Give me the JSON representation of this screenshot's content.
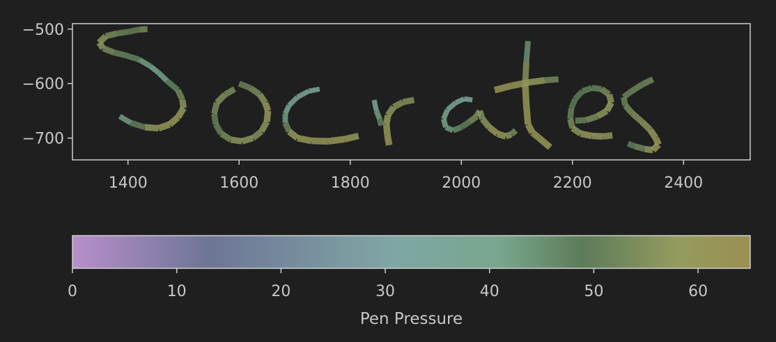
{
  "chart_data": [
    {
      "type": "line",
      "title": "",
      "xlabel": "",
      "ylabel": "",
      "xlim": [
        1300,
        2520
      ],
      "ylim": [
        -740,
        -490
      ],
      "x_ticks": [
        1400,
        1600,
        1800,
        2000,
        2200,
        2400
      ],
      "y_ticks": [
        -500,
        -600,
        -700
      ],
      "x_tick_labels": [
        "1400",
        "1600",
        "1800",
        "2000",
        "2200",
        "2400"
      ],
      "y_tick_labels": [
        "−500",
        "−600",
        "−700"
      ],
      "grid": false,
      "color_by": "Pen Pressure",
      "strokes": [
        {
          "name": "S",
          "points": [
            [
              1435,
              -500,
              55
            ],
            [
              1420,
              -501,
              50
            ],
            [
              1400,
              -505,
              50
            ],
            [
              1380,
              -508,
              52
            ],
            [
              1360,
              -513,
              55
            ],
            [
              1348,
              -525,
              58
            ],
            [
              1355,
              -535,
              55
            ],
            [
              1375,
              -543,
              52
            ],
            [
              1395,
              -548,
              50
            ],
            [
              1420,
              -556,
              45
            ],
            [
              1440,
              -568,
              40
            ],
            [
              1455,
              -580,
              38
            ],
            [
              1470,
              -595,
              45
            ],
            [
              1490,
              -612,
              50
            ],
            [
              1498,
              -630,
              55
            ],
            [
              1500,
              -645,
              58
            ],
            [
              1490,
              -662,
              60
            ],
            [
              1475,
              -675,
              62
            ],
            [
              1455,
              -682,
              60
            ],
            [
              1430,
              -680,
              55
            ],
            [
              1405,
              -672,
              45
            ],
            [
              1385,
              -660,
              40
            ]
          ]
        },
        {
          "name": "o",
          "points": [
            [
              1600,
              -600,
              50
            ],
            [
              1620,
              -608,
              52
            ],
            [
              1637,
              -620,
              55
            ],
            [
              1647,
              -635,
              58
            ],
            [
              1652,
              -650,
              60
            ],
            [
              1650,
              -670,
              58
            ],
            [
              1640,
              -688,
              55
            ],
            [
              1625,
              -700,
              55
            ],
            [
              1605,
              -706,
              58
            ],
            [
              1585,
              -703,
              55
            ],
            [
              1568,
              -692,
              52
            ],
            [
              1558,
              -675,
              50
            ],
            [
              1555,
              -655,
              52
            ],
            [
              1560,
              -635,
              55
            ],
            [
              1575,
              -620,
              55
            ],
            [
              1592,
              -610,
              52
            ]
          ]
        },
        {
          "name": "c",
          "points": [
            [
              1745,
              -610,
              35
            ],
            [
              1725,
              -614,
              35
            ],
            [
              1705,
              -625,
              35
            ],
            [
              1690,
              -640,
              38
            ],
            [
              1683,
              -655,
              40
            ],
            [
              1683,
              -672,
              45
            ],
            [
              1690,
              -688,
              58
            ],
            [
              1705,
              -700,
              60
            ],
            [
              1730,
              -705,
              62
            ],
            [
              1760,
              -706,
              62
            ],
            [
              1790,
              -702,
              60
            ],
            [
              1815,
              -696,
              58
            ]
          ]
        },
        {
          "name": "r1",
          "points": [
            [
              1843,
              -630,
              32
            ],
            [
              1847,
              -650,
              40
            ],
            [
              1853,
              -665,
              45
            ],
            [
              1856,
              -677,
              50
            ]
          ]
        },
        {
          "name": "r2",
          "points": [
            [
              1870,
              -713,
              62
            ],
            [
              1867,
              -695,
              62
            ],
            [
              1865,
              -675,
              60
            ],
            [
              1868,
              -658,
              58
            ],
            [
              1878,
              -643,
              55
            ],
            [
              1895,
              -634,
              55
            ],
            [
              1915,
              -630,
              55
            ]
          ]
        },
        {
          "name": "a",
          "points": [
            [
              2020,
              -630,
              35
            ],
            [
              2005,
              -628,
              35
            ],
            [
              1990,
              -635,
              35
            ],
            [
              1975,
              -648,
              38
            ],
            [
              1968,
              -665,
              40
            ],
            [
              1972,
              -680,
              42
            ],
            [
              1985,
              -686,
              45
            ],
            [
              2000,
              -680,
              48
            ],
            [
              2015,
              -670,
              52
            ],
            [
              2028,
              -660,
              55
            ],
            [
              2033,
              -650,
              55
            ],
            [
              2038,
              -665,
              55
            ],
            [
              2050,
              -680,
              58
            ],
            [
              2065,
              -692,
              60
            ],
            [
              2080,
              -697,
              58
            ],
            [
              2090,
              -693,
              55
            ],
            [
              2098,
              -686,
              50
            ]
          ]
        },
        {
          "name": "t1",
          "points": [
            [
              2120,
              -522,
              40
            ],
            [
              2117,
              -560,
              50
            ],
            [
              2115,
              -600,
              60
            ],
            [
              2117,
              -640,
              62
            ],
            [
              2120,
              -675,
              60
            ],
            [
              2128,
              -690,
              62
            ],
            [
              2140,
              -700,
              62
            ],
            [
              2160,
              -717,
              60
            ]
          ]
        },
        {
          "name": "t2",
          "points": [
            [
              2060,
              -612,
              62
            ],
            [
              2090,
              -604,
              62
            ],
            [
              2120,
              -598,
              62
            ],
            [
              2150,
              -594,
              55
            ],
            [
              2175,
              -592,
              50
            ]
          ]
        },
        {
          "name": "e",
          "points": [
            [
              2205,
              -668,
              50
            ],
            [
              2225,
              -667,
              52
            ],
            [
              2245,
              -660,
              55
            ],
            [
              2262,
              -650,
              58
            ],
            [
              2270,
              -635,
              58
            ],
            [
              2266,
              -620,
              55
            ],
            [
              2252,
              -610,
              52
            ],
            [
              2235,
              -608,
              50
            ],
            [
              2218,
              -614,
              50
            ],
            [
              2205,
              -628,
              48
            ],
            [
              2198,
              -645,
              50
            ],
            [
              2196,
              -665,
              52
            ],
            [
              2200,
              -682,
              55
            ],
            [
              2215,
              -692,
              58
            ],
            [
              2235,
              -696,
              60
            ],
            [
              2255,
              -697,
              58
            ],
            [
              2272,
              -695,
              55
            ]
          ]
        },
        {
          "name": "s",
          "points": [
            [
              2345,
              -592,
              52
            ],
            [
              2325,
              -602,
              52
            ],
            [
              2305,
              -615,
              52
            ],
            [
              2292,
              -625,
              50
            ],
            [
              2295,
              -640,
              52
            ],
            [
              2308,
              -655,
              55
            ],
            [
              2325,
              -670,
              55
            ],
            [
              2340,
              -685,
              58
            ],
            [
              2350,
              -700,
              60
            ],
            [
              2355,
              -712,
              62
            ],
            [
              2345,
              -722,
              60
            ],
            [
              2330,
              -720,
              55
            ],
            [
              2312,
              -715,
              50
            ],
            [
              2300,
              -710,
              48
            ]
          ]
        }
      ]
    },
    {
      "type": "colorbar",
      "label": "Pen Pressure",
      "range": [
        0,
        65
      ],
      "ticks": [
        0,
        10,
        20,
        30,
        40,
        50,
        60
      ],
      "tick_labels": [
        "0",
        "10",
        "20",
        "30",
        "40",
        "50",
        "60"
      ],
      "colormap": [
        {
          "value": 0,
          "color": "#b88fcb"
        },
        {
          "value": 13,
          "color": "#6e7596"
        },
        {
          "value": 31,
          "color": "#7fa7a4"
        },
        {
          "value": 41,
          "color": "#78a68d"
        },
        {
          "value": 49,
          "color": "#5d7c58"
        },
        {
          "value": 58,
          "color": "#949b5e"
        },
        {
          "value": 65,
          "color": "#9a8f50"
        }
      ]
    }
  ]
}
